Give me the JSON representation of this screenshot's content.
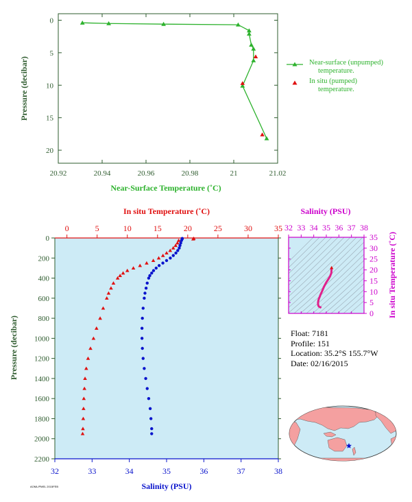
{
  "float_info": {
    "float": "Float:  7181",
    "profile": "Profile:  151",
    "location": "Location:  35.2°S  155.7°W",
    "date": "Date:  02/16/2015"
  },
  "stamp": "AOML/PMEL 2015FEB",
  "colors": {
    "nst": "#2db22d",
    "insitu": "#e01010",
    "salinity": "#0a14cc",
    "panel_bg": "#cdebf6",
    "inset_line": "#e0208c",
    "inset_axis": "#cc00cc",
    "axis_dark": "#2e5b2e",
    "land": "#f4a0a0",
    "ocean": "#cdebf6"
  },
  "legend": {
    "nst_line1": "Near-surface (unpumped)",
    "nst_line2": "temperature.",
    "insitu_line1": "In situ (pumped)",
    "insitu_line2": "temperature."
  },
  "chart_data": [
    {
      "type": "line",
      "xlabel": "Near-Surface Temperature (˚C)",
      "ylabel": "Pressure (decibar)",
      "xlim": [
        20.92,
        21.02
      ],
      "ylim": [
        22,
        -1
      ],
      "xticks": [
        "20.92",
        "20.94",
        "20.96",
        "20.98",
        "21",
        "21.02"
      ],
      "yticks": [
        "0",
        "5",
        "10",
        "15",
        "20"
      ],
      "series": [
        {
          "name": "Near-surface (unpumped) temperature.",
          "marker": "triangle",
          "x": [
            20.931,
            20.943,
            20.968,
            21.002,
            21.007,
            21.007,
            21.008,
            21.009,
            21.009,
            21.004,
            21.015
          ],
          "y": [
            0.4,
            0.5,
            0.6,
            0.7,
            1.6,
            2.1,
            3.8,
            4.4,
            6.2,
            10.1,
            18.2
          ]
        },
        {
          "name": "In situ (pumped) temperature.",
          "marker": "triangle",
          "x": [
            21.01,
            21.004,
            21.013
          ],
          "y": [
            5.6,
            9.7,
            17.6
          ]
        }
      ]
    },
    {
      "type": "scatter",
      "ylabel": "Pressure (decibar)",
      "top_xlabel": "In situ Temperature (˚C)",
      "bottom_xlabel": "Salinity (PSU)",
      "temp_xlim": [
        -2,
        35
      ],
      "sal_xlim": [
        32,
        38
      ],
      "ylim": [
        2200,
        0
      ],
      "temp_ticks": [
        "0",
        "5",
        "10",
        "15",
        "20",
        "25",
        "30",
        "35"
      ],
      "sal_ticks": [
        "32",
        "33",
        "34",
        "35",
        "36",
        "37",
        "38"
      ],
      "yticks": [
        "0",
        "200",
        "400",
        "600",
        "800",
        "1000",
        "1200",
        "1400",
        "1600",
        "1800",
        "2000",
        "2200"
      ],
      "temperature_profile": {
        "name": "In situ temperature",
        "pressure": [
          5,
          10,
          25,
          50,
          75,
          100,
          125,
          150,
          175,
          200,
          225,
          250,
          275,
          300,
          325,
          350,
          375,
          400,
          450,
          500,
          550,
          600,
          700,
          800,
          900,
          1000,
          1100,
          1200,
          1300,
          1400,
          1500,
          1600,
          1700,
          1800,
          1900,
          1950
        ],
        "temp": [
          21.0,
          20.9,
          18.5,
          18.3,
          18.0,
          17.6,
          17.1,
          16.5,
          15.9,
          15.2,
          14.3,
          13.2,
          12.1,
          11.0,
          10.0,
          9.3,
          8.8,
          8.4,
          7.7,
          7.3,
          6.9,
          6.6,
          6.0,
          5.5,
          4.9,
          4.4,
          3.9,
          3.5,
          3.2,
          3.0,
          2.9,
          2.8,
          2.75,
          2.7,
          2.65,
          2.6
        ]
      },
      "salinity_profile": {
        "name": "Salinity",
        "pressure": [
          5,
          10,
          25,
          50,
          75,
          100,
          125,
          150,
          175,
          200,
          225,
          250,
          275,
          300,
          325,
          350,
          375,
          400,
          450,
          500,
          550,
          600,
          700,
          800,
          900,
          1000,
          1100,
          1200,
          1300,
          1400,
          1500,
          1600,
          1700,
          1800,
          1900,
          1950
        ],
        "sal": [
          35.42,
          35.42,
          35.4,
          35.38,
          35.36,
          35.34,
          35.3,
          35.25,
          35.18,
          35.1,
          35.0,
          34.9,
          34.8,
          34.72,
          34.65,
          34.6,
          34.55,
          34.52,
          34.48,
          34.45,
          34.42,
          34.4,
          34.37,
          34.35,
          34.34,
          34.34,
          34.35,
          34.37,
          34.4,
          34.44,
          34.48,
          34.52,
          34.56,
          34.58,
          34.6,
          34.6
        ]
      }
    },
    {
      "type": "line",
      "top_xlabel": "Salinity (PSU)",
      "right_ylabel": "In situ Temperature (˚C)",
      "xlim": [
        32,
        38
      ],
      "ylim": [
        0,
        35
      ],
      "xticks": [
        "32",
        "33",
        "34",
        "35",
        "36",
        "37",
        "38"
      ],
      "yticks": [
        "0",
        "5",
        "10",
        "15",
        "20",
        "25",
        "30",
        "35"
      ],
      "series": [
        {
          "name": "T-S",
          "x": [
            35.42,
            35.4,
            35.36,
            35.3,
            35.18,
            35.0,
            34.8,
            34.65,
            34.55,
            34.48,
            34.42,
            34.37,
            34.34,
            34.35,
            34.4,
            34.48,
            34.56,
            34.6
          ],
          "y": [
            21.0,
            18.5,
            18.0,
            17.1,
            15.9,
            14.3,
            12.1,
            10.0,
            8.8,
            7.7,
            6.9,
            6.0,
            4.9,
            3.9,
            3.2,
            2.9,
            2.75,
            2.6
          ]
        }
      ]
    }
  ],
  "map": {
    "float_marker": "star-icon"
  }
}
